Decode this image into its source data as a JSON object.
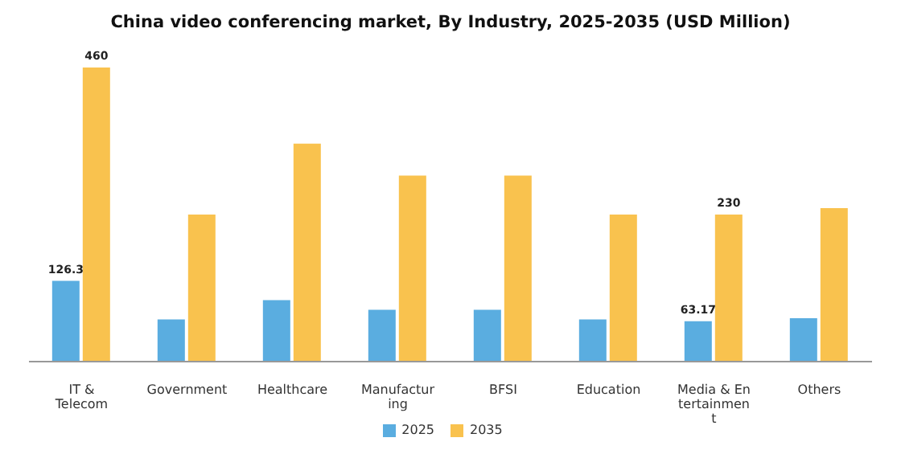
{
  "chart_data": {
    "type": "bar",
    "title": "China video conferencing market, By Industry, 2025-2035 (USD Million)",
    "categories": [
      "IT & Telecom",
      "Government",
      "Healthcare",
      "Manufacturing",
      "BFSI",
      "Education",
      "Media & Entertainment",
      "Others"
    ],
    "series": [
      {
        "name": "2025",
        "color": "#5aade0",
        "values": [
          126.3,
          66,
          96,
          81,
          81,
          66,
          63.17,
          68
        ],
        "value_labels": [
          "126.3",
          null,
          null,
          null,
          null,
          null,
          "63.17",
          null
        ]
      },
      {
        "name": "2035",
        "color": "#f9c24e",
        "values": [
          460,
          230,
          341,
          291,
          291,
          230,
          230,
          240
        ],
        "value_labels": [
          "460",
          null,
          null,
          null,
          null,
          null,
          "230",
          null
        ]
      }
    ],
    "legend": "bottom",
    "grid": false
  }
}
